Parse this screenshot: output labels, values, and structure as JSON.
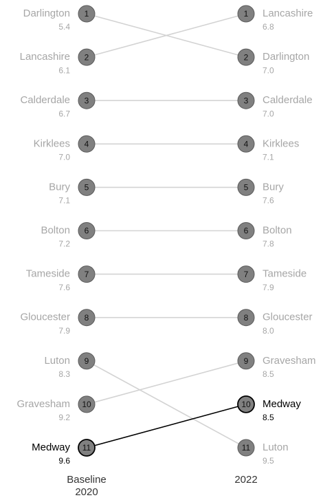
{
  "chart_data": {
    "type": "slope",
    "categories": [
      "Baseline\n2020",
      "2022"
    ],
    "ylim": [
      1,
      11
    ],
    "highlight": "Medway",
    "line_color": "#d3d3d3",
    "text_color": "#a6a6a6",
    "marker_color": "#808080",
    "highlight_color": "#000000",
    "series": [
      {
        "name": "Darlington",
        "ranks": [
          1,
          2
        ],
        "values": [
          5.4,
          7.0
        ],
        "value_labels": [
          "5.4",
          "7.0"
        ]
      },
      {
        "name": "Lancashire",
        "ranks": [
          2,
          1
        ],
        "values": [
          6.1,
          6.8
        ],
        "value_labels": [
          "6.1",
          "6.8"
        ]
      },
      {
        "name": "Calderdale",
        "ranks": [
          3,
          3
        ],
        "values": [
          6.7,
          7.0
        ],
        "value_labels": [
          "6.7",
          "7.0"
        ]
      },
      {
        "name": "Kirklees",
        "ranks": [
          4,
          4
        ],
        "values": [
          7.0,
          7.1
        ],
        "value_labels": [
          "7.0",
          "7.1"
        ]
      },
      {
        "name": "Bury",
        "ranks": [
          5,
          5
        ],
        "values": [
          7.1,
          7.6
        ],
        "value_labels": [
          "7.1",
          "7.6"
        ]
      },
      {
        "name": "Bolton",
        "ranks": [
          6,
          6
        ],
        "values": [
          7.2,
          7.8
        ],
        "value_labels": [
          "7.2",
          "7.8"
        ]
      },
      {
        "name": "Tameside",
        "ranks": [
          7,
          7
        ],
        "values": [
          7.6,
          7.9
        ],
        "value_labels": [
          "7.6",
          "7.9"
        ]
      },
      {
        "name": "Gloucester",
        "ranks": [
          8,
          8
        ],
        "values": [
          7.9,
          8.0
        ],
        "value_labels": [
          "7.9",
          "8.0"
        ]
      },
      {
        "name": "Luton",
        "ranks": [
          9,
          11
        ],
        "values": [
          8.3,
          9.5
        ],
        "value_labels": [
          "8.3",
          "9.5"
        ]
      },
      {
        "name": "Gravesham",
        "ranks": [
          10,
          9
        ],
        "values": [
          9.2,
          8.5
        ],
        "value_labels": [
          "9.2",
          "8.5"
        ]
      },
      {
        "name": "Medway",
        "ranks": [
          11,
          10
        ],
        "values": [
          9.6,
          8.5
        ],
        "value_labels": [
          "9.6",
          "8.5"
        ]
      }
    ]
  }
}
